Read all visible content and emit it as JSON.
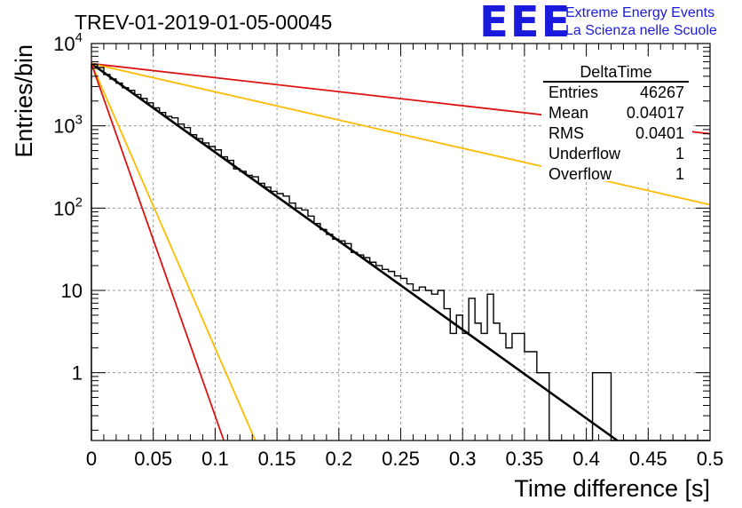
{
  "header": {
    "title": "TREV-01-2019-01-05-00045",
    "logo_text": "EEE",
    "logo_line1": "Extreme Energy Events",
    "logo_line2": "La Scienza nelle Scuole"
  },
  "stats_box": {
    "name": "DeltaTime",
    "rows": [
      {
        "label": "Entries",
        "value": "46267"
      },
      {
        "label": "Mean",
        "value": "0.04017"
      },
      {
        "label": "RMS",
        "value": "0.0401"
      },
      {
        "label": "Underflow",
        "value": "1"
      },
      {
        "label": "Overflow",
        "value": "1"
      }
    ]
  },
  "chart_data": {
    "type": "line",
    "title": "TREV-01-2019-01-05-00045",
    "xlabel": "Time difference [s]",
    "ylabel": "Entries/bin",
    "xlim": [
      0,
      0.5
    ],
    "ylim": [
      0.15,
      10000
    ],
    "yscale": "log",
    "grid": true,
    "x_ticks": [
      0,
      0.05,
      0.1,
      0.15,
      0.2,
      0.25,
      0.3,
      0.35,
      0.4,
      0.45,
      0.5
    ],
    "x_tick_labels": [
      "0",
      "0.05",
      "0.1",
      "0.15",
      "0.2",
      "0.25",
      "0.3",
      "0.35",
      "0.4",
      "0.45",
      "0.5"
    ],
    "y_ticks": [
      1,
      10,
      100,
      1000,
      10000
    ],
    "y_tick_labels": [
      {
        "base": "1",
        "exp": ""
      },
      {
        "base": "10",
        "exp": ""
      },
      {
        "base": "10",
        "exp": "2"
      },
      {
        "base": "10",
        "exp": "3"
      },
      {
        "base": "10",
        "exp": "4"
      }
    ],
    "histogram": {
      "color": "#000000",
      "bin_width": 0.005,
      "x_start": 0,
      "values": [
        5600,
        5100,
        4200,
        3700,
        3300,
        2900,
        2700,
        2400,
        2150,
        1900,
        1650,
        1450,
        1300,
        1250,
        1050,
        950,
        780,
        700,
        620,
        560,
        510,
        420,
        380,
        300,
        280,
        250,
        240,
        200,
        180,
        160,
        150,
        140,
        115,
        100,
        95,
        80,
        65,
        55,
        48,
        42,
        40,
        37,
        29,
        27,
        25,
        22,
        20,
        18,
        17,
        15,
        14,
        12,
        10,
        11,
        10,
        9,
        10,
        6,
        3,
        5,
        3,
        8,
        4,
        3,
        9,
        4,
        3,
        2,
        3,
        3,
        1.8,
        1.8,
        1.0,
        1.0,
        0.15,
        0.15,
        0.15,
        0.15,
        0.15,
        0.15,
        0.15,
        1.0,
        1.0,
        1.0,
        0.15,
        0.15,
        0.15,
        0.15,
        0.15,
        0.15,
        0.15,
        0.15,
        0.15,
        0.15,
        0.15,
        0.15,
        0.15,
        0.15,
        0.15,
        0.15
      ]
    },
    "series": [
      {
        "color": "#000000",
        "points": [
          [
            0,
            5700
          ],
          [
            0.425,
            0.15
          ]
        ]
      },
      {
        "color": "#dd1111",
        "points": [
          [
            0,
            5700
          ],
          [
            0.5,
            800
          ]
        ]
      },
      {
        "color": "#ffbb00",
        "points": [
          [
            0,
            5700
          ],
          [
            0.5,
            110
          ]
        ]
      },
      {
        "color": "#ffbb00",
        "points": [
          [
            0,
            5700
          ],
          [
            0.1325,
            0.15
          ]
        ]
      },
      {
        "color": "#dd1111",
        "points": [
          [
            0,
            5700
          ],
          [
            0.107,
            0.15
          ]
        ]
      }
    ]
  }
}
